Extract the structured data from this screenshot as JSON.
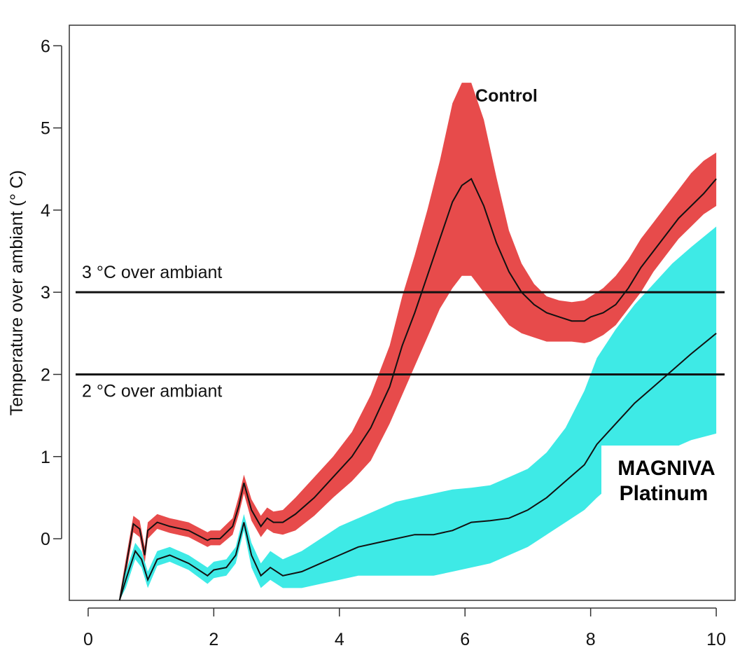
{
  "chart_data": {
    "type": "line",
    "ylabel": "Temperature over ambiant (° C)",
    "xlabel": "",
    "xlim": [
      -0.3,
      10.3
    ],
    "ylim": [
      -0.75,
      6.25
    ],
    "x_ticks": [
      "0",
      "2",
      "4",
      "6",
      "8",
      "10"
    ],
    "y_ticks": [
      "0",
      "1",
      "2",
      "3",
      "4",
      "5",
      "6"
    ],
    "grid": false,
    "reference_lines": [
      {
        "y": 3,
        "label": "3 °C over ambiant"
      },
      {
        "y": 2,
        "label": "2 °C over ambiant"
      }
    ],
    "series": [
      {
        "name": "Control",
        "color": "#e53c3c",
        "x": [
          0.5,
          0.6,
          0.72,
          0.82,
          0.9,
          0.95,
          1.1,
          1.3,
          1.6,
          1.9,
          1.95,
          2.1,
          2.3,
          2.4,
          2.48,
          2.6,
          2.75,
          2.85,
          2.95,
          3.1,
          3.3,
          3.6,
          3.9,
          4.2,
          4.5,
          4.8,
          5.0,
          5.2,
          5.4,
          5.6,
          5.8,
          5.95,
          6.1,
          6.3,
          6.5,
          6.7,
          6.9,
          7.1,
          7.3,
          7.5,
          7.7,
          7.9,
          8.0,
          8.2,
          8.4,
          8.6,
          8.8,
          9.0,
          9.2,
          9.4,
          9.6,
          9.8,
          10.0
        ],
        "y": [
          -0.75,
          -0.35,
          0.18,
          0.12,
          -0.2,
          0.1,
          0.2,
          0.15,
          0.1,
          -0.02,
          0.0,
          0.0,
          0.15,
          0.4,
          0.68,
          0.35,
          0.15,
          0.25,
          0.2,
          0.2,
          0.3,
          0.5,
          0.75,
          1.0,
          1.35,
          1.85,
          2.35,
          2.75,
          3.2,
          3.65,
          4.1,
          4.3,
          4.38,
          4.05,
          3.6,
          3.25,
          3.0,
          2.85,
          2.75,
          2.7,
          2.65,
          2.65,
          2.7,
          2.75,
          2.85,
          3.05,
          3.3,
          3.5,
          3.7,
          3.9,
          4.05,
          4.2,
          4.38
        ],
        "band_lower": [
          -0.75,
          -0.45,
          0.08,
          0.02,
          -0.3,
          0.0,
          0.12,
          0.07,
          0.02,
          -0.1,
          -0.08,
          -0.08,
          0.05,
          0.3,
          0.55,
          0.22,
          0.02,
          0.12,
          0.07,
          0.05,
          0.1,
          0.28,
          0.5,
          0.7,
          0.95,
          1.4,
          1.75,
          2.1,
          2.45,
          2.8,
          3.05,
          3.2,
          3.2,
          3.0,
          2.8,
          2.6,
          2.5,
          2.45,
          2.4,
          2.4,
          2.4,
          2.38,
          2.4,
          2.48,
          2.6,
          2.8,
          3.0,
          3.25,
          3.45,
          3.65,
          3.8,
          3.95,
          4.05
        ],
        "band_upper": [
          -0.7,
          -0.25,
          0.28,
          0.22,
          -0.1,
          0.2,
          0.3,
          0.25,
          0.2,
          0.08,
          0.1,
          0.1,
          0.25,
          0.52,
          0.78,
          0.48,
          0.28,
          0.38,
          0.33,
          0.35,
          0.5,
          0.75,
          1.0,
          1.3,
          1.75,
          2.35,
          2.95,
          3.45,
          4.0,
          4.6,
          5.3,
          5.55,
          5.55,
          5.1,
          4.4,
          3.75,
          3.35,
          3.1,
          2.95,
          2.9,
          2.88,
          2.9,
          2.95,
          3.05,
          3.2,
          3.4,
          3.65,
          3.85,
          4.05,
          4.25,
          4.45,
          4.6,
          4.7
        ]
      },
      {
        "name": "MAGNIVA Platinum",
        "color": "#2ee8e4",
        "x": [
          0.5,
          0.6,
          0.75,
          0.85,
          0.95,
          1.1,
          1.3,
          1.6,
          1.9,
          2.0,
          2.2,
          2.35,
          2.48,
          2.6,
          2.75,
          2.9,
          3.1,
          3.4,
          3.7,
          4.0,
          4.3,
          4.6,
          4.9,
          5.2,
          5.5,
          5.8,
          6.1,
          6.4,
          6.7,
          7.0,
          7.3,
          7.6,
          7.9,
          8.1,
          8.4,
          8.7,
          9.0,
          9.3,
          9.6,
          10.0
        ],
        "y": [
          -0.75,
          -0.5,
          -0.15,
          -0.25,
          -0.5,
          -0.25,
          -0.2,
          -0.3,
          -0.45,
          -0.38,
          -0.35,
          -0.2,
          0.2,
          -0.2,
          -0.45,
          -0.35,
          -0.45,
          -0.4,
          -0.3,
          -0.2,
          -0.1,
          -0.05,
          0.0,
          0.05,
          0.05,
          0.1,
          0.2,
          0.22,
          0.25,
          0.35,
          0.5,
          0.7,
          0.9,
          1.15,
          1.4,
          1.65,
          1.85,
          2.05,
          2.25,
          2.5
        ],
        "band_lower": [
          -0.75,
          -0.6,
          -0.25,
          -0.35,
          -0.6,
          -0.33,
          -0.28,
          -0.38,
          -0.55,
          -0.48,
          -0.45,
          -0.3,
          0.1,
          -0.35,
          -0.6,
          -0.5,
          -0.6,
          -0.6,
          -0.55,
          -0.5,
          -0.45,
          -0.45,
          -0.45,
          -0.45,
          -0.45,
          -0.4,
          -0.35,
          -0.3,
          -0.2,
          -0.1,
          0.05,
          0.2,
          0.35,
          0.5,
          0.7,
          0.85,
          1.0,
          1.1,
          1.2,
          1.28
        ],
        "band_upper": [
          -0.7,
          -0.4,
          -0.05,
          -0.15,
          -0.4,
          -0.15,
          -0.1,
          -0.2,
          -0.35,
          -0.28,
          -0.25,
          -0.1,
          0.3,
          -0.05,
          -0.3,
          -0.15,
          -0.25,
          -0.15,
          0.0,
          0.15,
          0.25,
          0.35,
          0.45,
          0.5,
          0.55,
          0.6,
          0.62,
          0.65,
          0.75,
          0.85,
          1.05,
          1.35,
          1.8,
          2.2,
          2.55,
          2.85,
          3.1,
          3.35,
          3.55,
          3.8
        ]
      }
    ],
    "annotations": [
      {
        "text": "Control",
        "x": 6.7,
        "y": 5.4
      },
      {
        "text": "MAGNIVA",
        "x": 9.0,
        "y": 0.85
      },
      {
        "text": "Platinum",
        "x": 9.0,
        "y": 0.55
      }
    ]
  }
}
